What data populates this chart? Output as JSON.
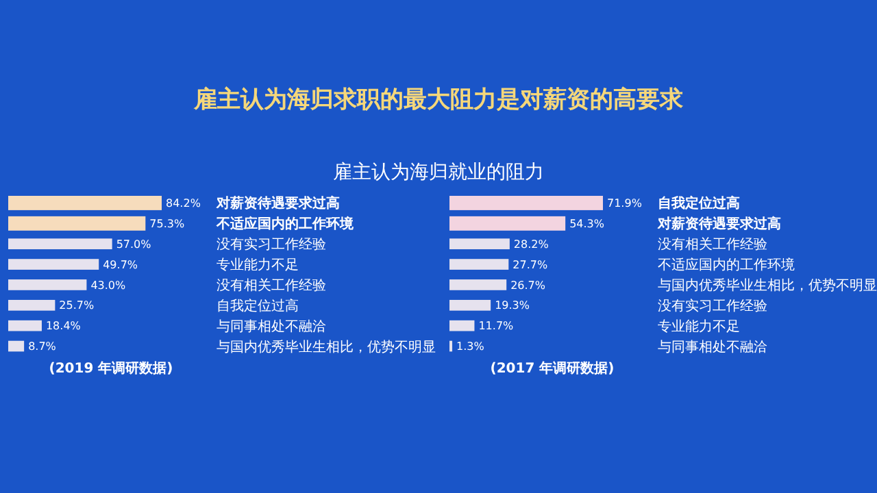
{
  "chart_data": [
    {
      "type": "bar",
      "orientation": "horizontal",
      "title": "雇主认为海归求职的最大阻力是对薪资的高要求",
      "subtitle": "雇主认为海归就业的阻力",
      "categories": [
        "对薪资待遇要求过高",
        "不适应国内的工作环境",
        "没有实习工作经验",
        "专业能力不足",
        "没有相关工作经验",
        "自我定位过高",
        "与同事相处不融洽",
        "与国内优秀毕业生相比，优势不明显"
      ],
      "values": [
        84.2,
        75.3,
        57.0,
        49.7,
        43.0,
        25.7,
        18.4,
        8.7
      ],
      "value_labels": [
        "84.2%",
        "75.3%",
        "57.0%",
        "49.7%",
        "43.0%",
        "25.7%",
        "18.4%",
        "8.7%"
      ],
      "colors": [
        "#f6dcbc",
        "#f6dcbc",
        "#e6e2ee",
        "#e6e2ee",
        "#e6e2ee",
        "#e6e2ee",
        "#e6e2ee",
        "#e6e2ee"
      ],
      "annotations": [
        "(2019 年调研数据)"
      ]
    },
    {
      "type": "bar",
      "orientation": "horizontal",
      "categories": [
        "自我定位过高",
        "对薪资待遇要求过高",
        "没有相关工作经验",
        "不适应国内的工作环境",
        "与国内优秀毕业生相比，优势不明显",
        "没有实习工作经验",
        "专业能力不足",
        "与同事相处不融洽"
      ],
      "values": [
        71.9,
        54.3,
        28.2,
        27.7,
        26.7,
        19.3,
        11.7,
        1.3
      ],
      "value_labels": [
        "71.9%",
        "54.3%",
        "28.2%",
        "27.7%",
        "26.7%",
        "19.3%",
        "11.7%",
        "1.3%"
      ],
      "colors": [
        "#f3d4e0",
        "#f3d4e0",
        "#e6e2ee",
        "#e6e2ee",
        "#e6e2ee",
        "#e6e2ee",
        "#e6e2ee",
        "#e6e2ee"
      ],
      "annotations": [
        "(2017 年调研数据)"
      ]
    }
  ]
}
